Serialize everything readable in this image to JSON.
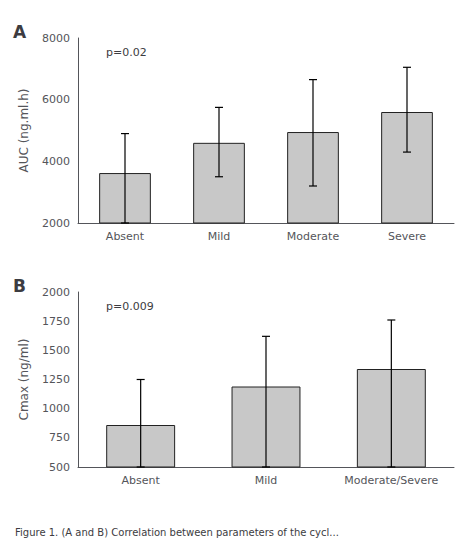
{
  "chart_data": [
    {
      "type": "bar",
      "title": "A",
      "categories": [
        "Absent",
        "Mild",
        "Moderate",
        "Severe"
      ],
      "values": [
        3620,
        4600,
        4950,
        5600
      ],
      "yerr_upper": [
        1280,
        1150,
        1700,
        1450
      ],
      "yerr_lower": [
        1620,
        1100,
        1750,
        1300
      ],
      "ylabel": "AUC (ng.ml.h)",
      "ylim": [
        2000,
        8000
      ],
      "yticks": [
        2000,
        4000,
        6000,
        8000
      ],
      "annotations": [
        "p=0.02"
      ],
      "color": "#c8c8c8"
    },
    {
      "type": "bar",
      "title": "B",
      "categories": [
        "Absent",
        "Mild",
        "Moderate/Severe"
      ],
      "values": [
        860,
        1190,
        1340
      ],
      "yerr_upper": [
        390,
        430,
        420
      ],
      "yerr_lower": [
        360,
        690,
        840
      ],
      "ylabel": "Cmax (ng/ml)",
      "ylim": [
        500,
        2000
      ],
      "yticks": [
        500,
        750,
        1000,
        1250,
        1500,
        1750,
        2000
      ],
      "annotations": [
        "p=0.009"
      ],
      "color": "#c8c8c8"
    }
  ],
  "caption": "Figure 1. (A and B) Correlation between parameters of the cycl..."
}
